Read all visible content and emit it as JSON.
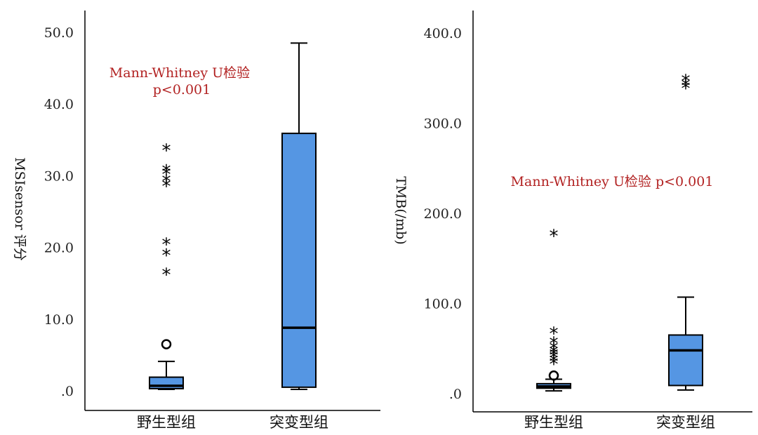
{
  "colors": {
    "box_fill": "#5596e3",
    "annotation": "#b22222",
    "axis": "#000000"
  },
  "chart_data": [
    {
      "type": "box",
      "ylabel": "MSIsensor 评分",
      "ylim": [
        0,
        50
      ],
      "yticks": [
        ".0",
        "10.0",
        "20.0",
        "30.0",
        "40.0",
        "50.0"
      ],
      "categories": [
        "野生型组",
        "突变型组"
      ],
      "annotation": [
        "Mann-Whitney U检验",
        "p<0.001"
      ],
      "boxes": [
        {
          "category": "野生型组",
          "whisker_low": 0.2,
          "q1": 0.3,
          "median": 0.7,
          "q3": 1.9,
          "whisker_high": 4.1,
          "outliers_circle": [
            6.5
          ],
          "outliers_star": [
            33.8,
            30.9,
            30.5,
            29.5,
            28.8,
            20.7,
            19.2,
            16.5
          ]
        },
        {
          "category": "突变型组",
          "whisker_low": 0.2,
          "q1": 0.5,
          "median": 8.8,
          "q3": 35.9,
          "whisker_high": 48.5,
          "outliers_circle": [],
          "outliers_star": []
        }
      ]
    },
    {
      "type": "box",
      "ylabel": "TMB(/mb)",
      "ylim": [
        0,
        400
      ],
      "yticks": [
        ".0",
        "100.0",
        "200.0",
        "300.0",
        "400.0"
      ],
      "categories": [
        "野生型组",
        "突变型组"
      ],
      "annotation": [
        "Mann-Whitney U检验 p<0.001"
      ],
      "boxes": [
        {
          "category": "野生型组",
          "whisker_low": 3,
          "q1": 6,
          "median": 8,
          "q3": 11,
          "whisker_high": 16,
          "outliers_circle": [
            20
          ],
          "outliers_star": [
            177,
            69,
            58,
            52,
            48,
            45,
            42,
            38,
            35
          ]
        },
        {
          "category": "突变型组",
          "whisker_low": 4,
          "q1": 9,
          "median": 48,
          "q3": 65,
          "whisker_high": 107,
          "outliers_circle": [],
          "outliers_star": [
            349,
            344,
            341
          ]
        }
      ]
    }
  ]
}
